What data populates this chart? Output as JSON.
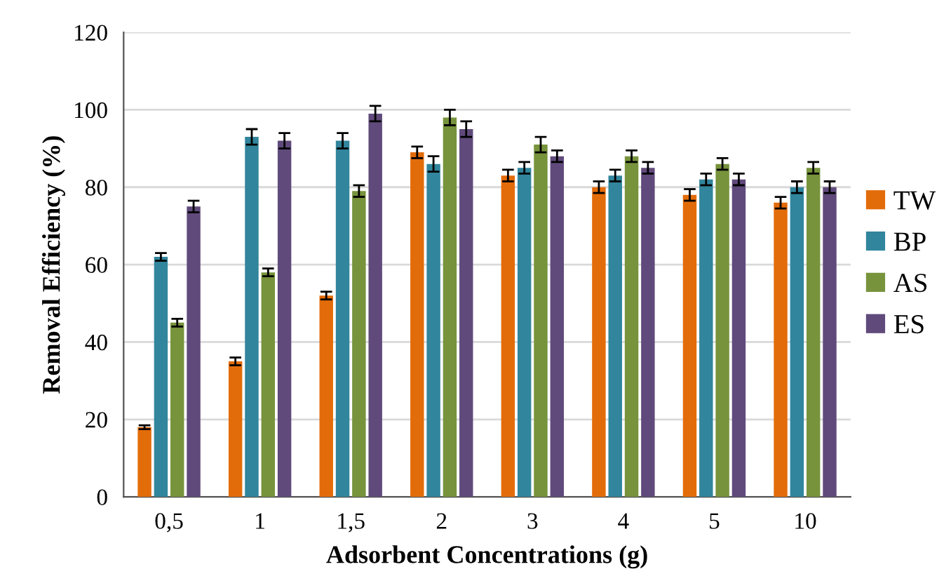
{
  "chart_data": {
    "type": "bar",
    "xlabel": "Adsorbent Concentrations (g)",
    "ylabel": "Removal Efficiency (%)",
    "categories": [
      "0,5",
      "1",
      "1,5",
      "2",
      "3",
      "4",
      "5",
      "10"
    ],
    "series": [
      {
        "name": "TW",
        "color": "#e36c0a",
        "values": [
          18,
          35,
          52,
          89,
          83,
          80,
          78,
          76
        ],
        "errors": [
          0.5,
          1,
          1,
          1.5,
          1.5,
          1.5,
          1.5,
          1.5
        ]
      },
      {
        "name": "BP",
        "color": "#31859c",
        "values": [
          62,
          93,
          92,
          86,
          85,
          83,
          82,
          80
        ],
        "errors": [
          1,
          2,
          2,
          2,
          1.5,
          1.5,
          1.5,
          1.5
        ]
      },
      {
        "name": "AS",
        "color": "#77933c",
        "values": [
          45,
          58,
          79,
          98,
          91,
          88,
          86,
          85
        ],
        "errors": [
          1,
          1,
          1.5,
          2,
          2,
          1.5,
          1.5,
          1.5
        ]
      },
      {
        "name": "ES",
        "color": "#604a7b",
        "values": [
          75,
          92,
          99,
          95,
          88,
          85,
          82,
          80
        ],
        "errors": [
          1.5,
          2,
          2,
          2,
          1.5,
          1.5,
          1.5,
          1.5
        ]
      }
    ],
    "ylim": [
      0,
      120
    ],
    "yticks": [
      0,
      20,
      40,
      60,
      80,
      100,
      120
    ],
    "grid": "y",
    "legend": "right"
  }
}
